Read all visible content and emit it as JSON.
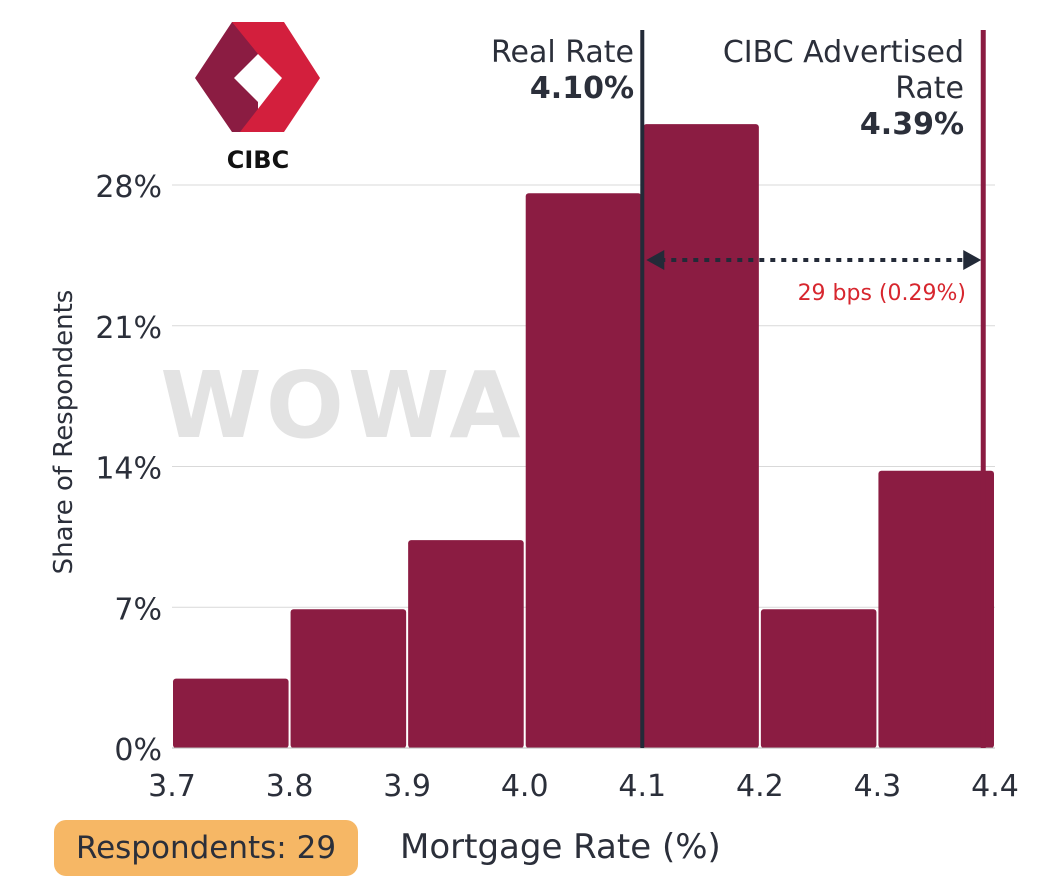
{
  "chart_data": {
    "type": "bar",
    "subtype": "histogram",
    "bin_edges": [
      3.7,
      3.8,
      3.9,
      4.0,
      4.1,
      4.2,
      4.3,
      4.4
    ],
    "values": [
      3.45,
      6.9,
      10.34,
      27.59,
      31.03,
      6.9,
      13.79
    ],
    "xlabel": "Mortgage Rate (%)",
    "ylabel": "Share of Respondents",
    "xlim": [
      3.7,
      4.4
    ],
    "ylim": [
      0,
      31
    ],
    "xticks": [
      "3.7",
      "3.8",
      "3.9",
      "4.0",
      "4.1",
      "4.2",
      "4.3",
      "4.4"
    ],
    "yticks": [
      {
        "v": 0,
        "label": "0%"
      },
      {
        "v": 7,
        "label": "7%"
      },
      {
        "v": 14,
        "label": "14%"
      },
      {
        "v": 21,
        "label": "21%"
      },
      {
        "v": 28,
        "label": "28%"
      }
    ],
    "grid": "horizontal",
    "bar_color": "#8b1c42",
    "reference_lines": [
      {
        "x": 4.1,
        "label": "Real Rate",
        "value_label": "4.10%",
        "color": "#232a38"
      },
      {
        "x": 4.39,
        "label_lines": [
          "CIBC Advertised",
          "Rate"
        ],
        "value_label": "4.39%",
        "color": "#8b1c42"
      }
    ],
    "annotation": {
      "text": "29 bps (0.29%)",
      "color": "#d7262e",
      "from": 4.1,
      "to": 4.39
    }
  },
  "logo": {
    "text": "CIBC",
    "colors": [
      "#8b1c42",
      "#d31f3d"
    ]
  },
  "watermark": "WOWA.ca",
  "respondents_label": "Respondents: 29"
}
